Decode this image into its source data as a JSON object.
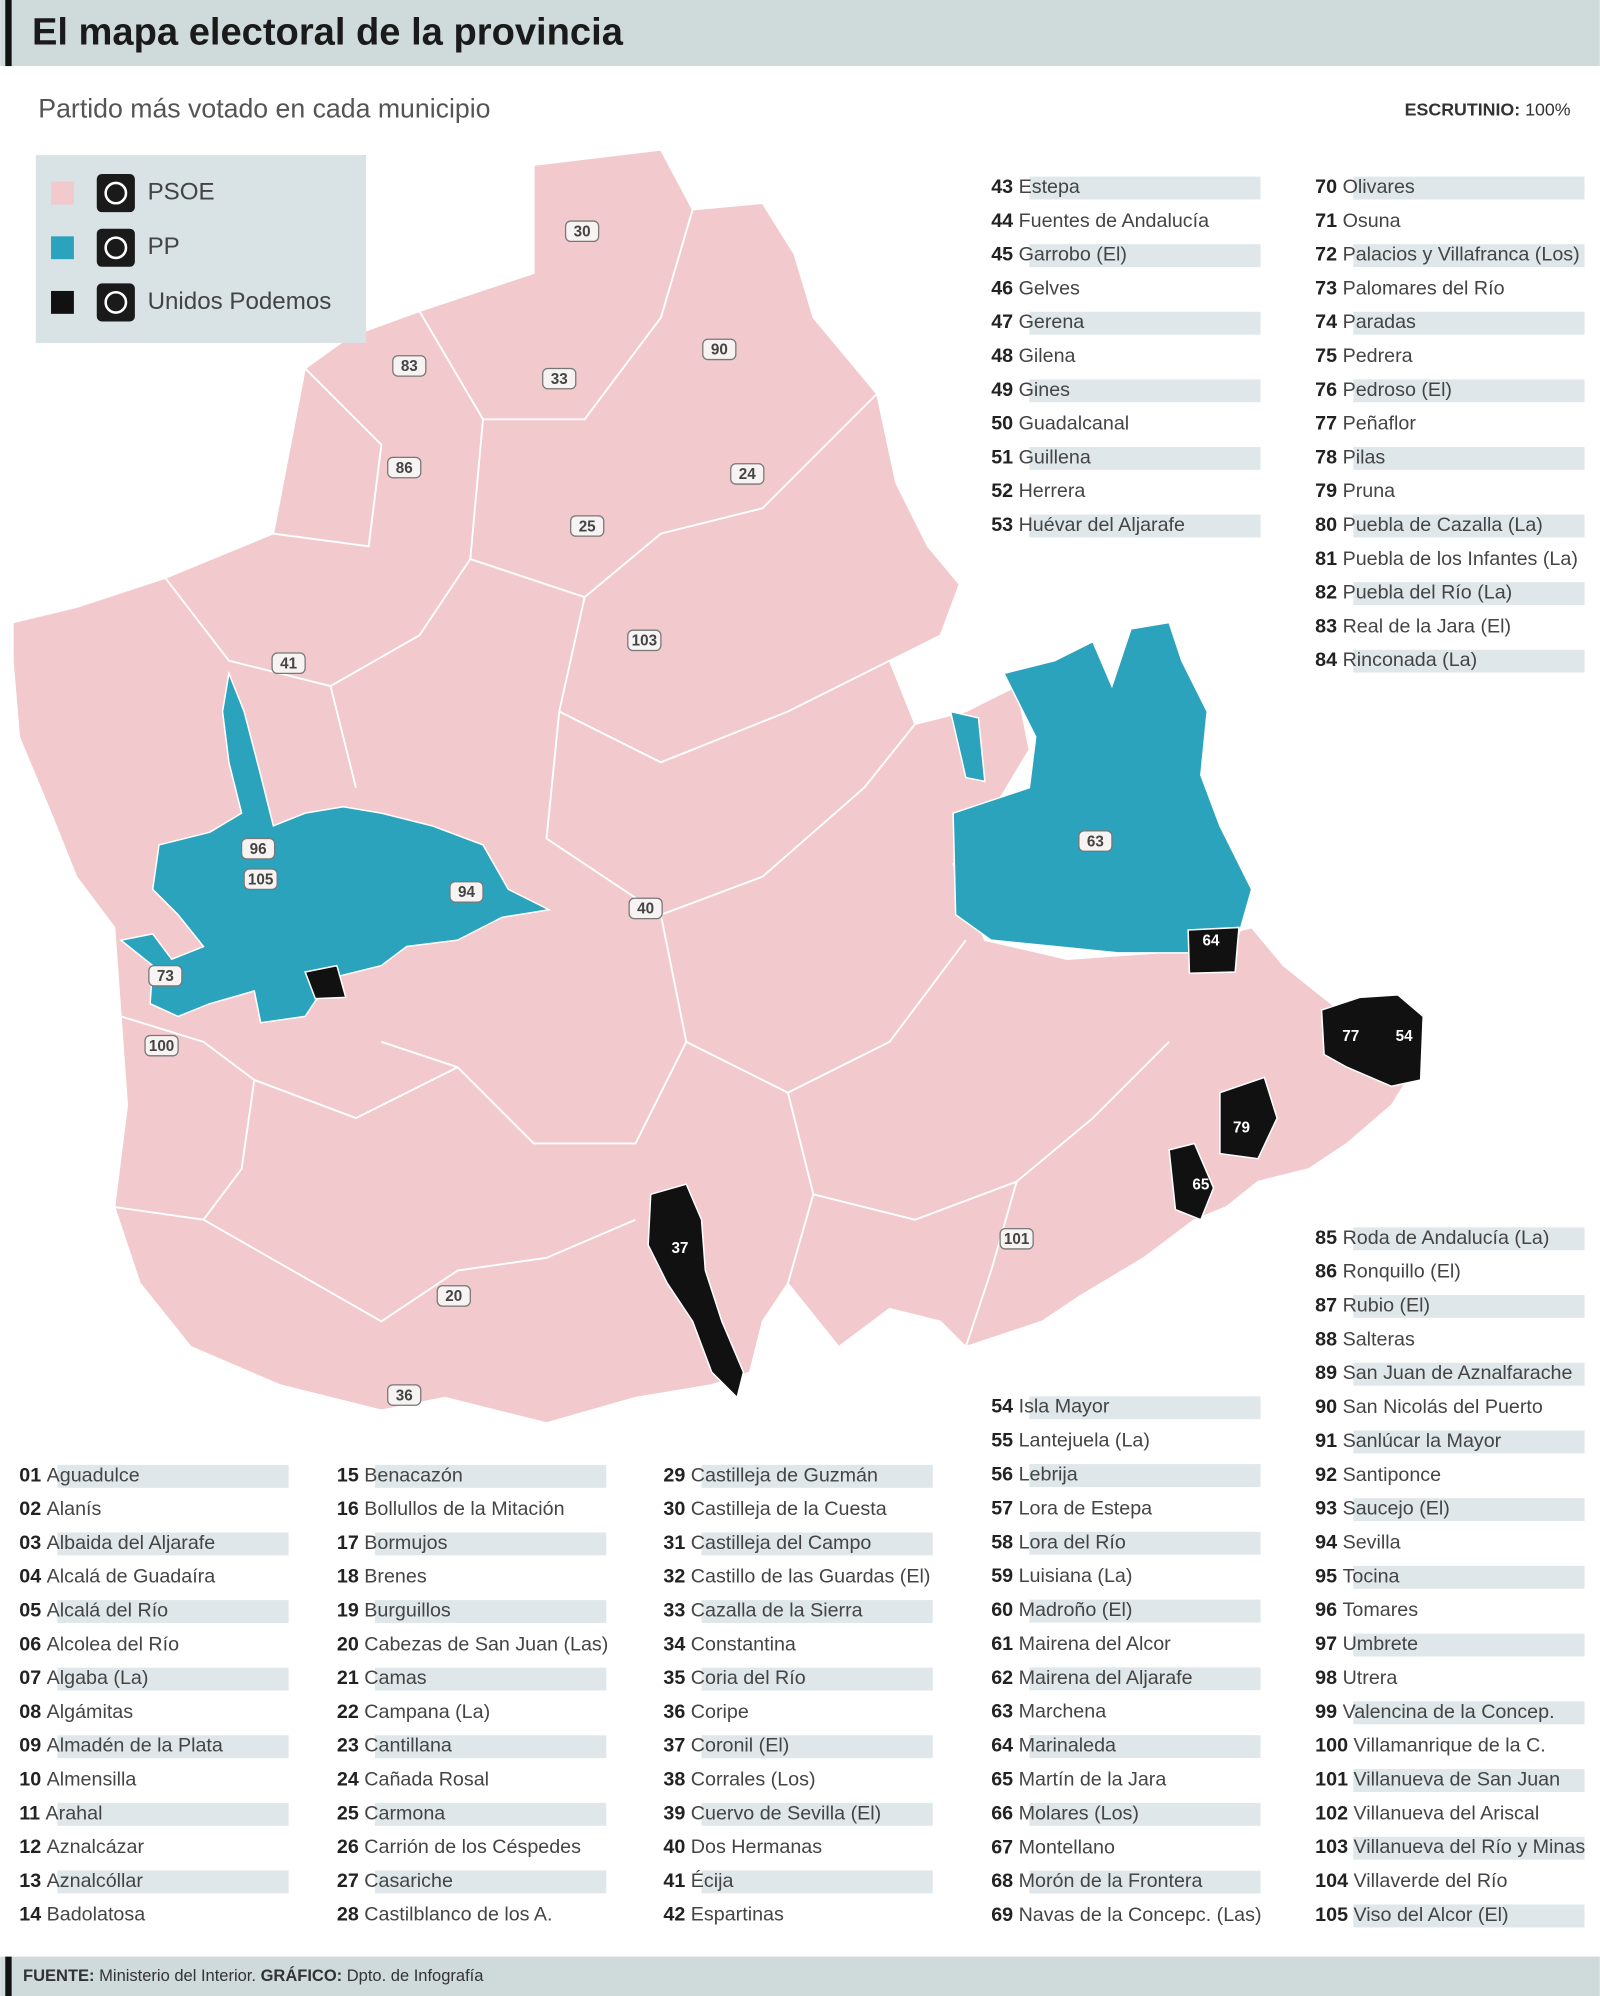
{
  "header": {
    "title": "El mapa electoral de la provincia",
    "subtitle": "Partido más votado en cada municipio",
    "count_label": "ESCRUTINIO:",
    "count_value": "100%"
  },
  "legend": [
    {
      "name": "PSOE",
      "color": "#f2c9cc"
    },
    {
      "name": "PP",
      "color": "#2ba3bd"
    },
    {
      "name": "Unidos Podemos",
      "color": "#111111"
    }
  ],
  "map_labels": [
    "30",
    "83",
    "33",
    "90",
    "86",
    "24",
    "25",
    "103",
    "41",
    "105",
    "96",
    "94",
    "73",
    "100",
    "40",
    "63",
    "64",
    "54",
    "77",
    "79",
    "65",
    "37",
    "101",
    "20",
    "36"
  ],
  "municipalities": [
    {
      "num": "01",
      "name": "Aguadulce"
    },
    {
      "num": "02",
      "name": "Alanís"
    },
    {
      "num": "03",
      "name": "Albaida del Aljarafe"
    },
    {
      "num": "04",
      "name": "Alcalá de Guadaíra"
    },
    {
      "num": "05",
      "name": "Alcalá del Río"
    },
    {
      "num": "06",
      "name": "Alcolea del Río"
    },
    {
      "num": "07",
      "name": "Algaba (La)"
    },
    {
      "num": "08",
      "name": "Algámitas"
    },
    {
      "num": "09",
      "name": "Almadén de la Plata"
    },
    {
      "num": "10",
      "name": "Almensilla"
    },
    {
      "num": "11",
      "name": "Arahal"
    },
    {
      "num": "12",
      "name": "Aznalcázar"
    },
    {
      "num": "13",
      "name": "Aznalcóllar"
    },
    {
      "num": "14",
      "name": "Badolatosa"
    },
    {
      "num": "15",
      "name": "Benacazón"
    },
    {
      "num": "16",
      "name": "Bollullos de la Mitación"
    },
    {
      "num": "17",
      "name": "Bormujos"
    },
    {
      "num": "18",
      "name": "Brenes"
    },
    {
      "num": "19",
      "name": "Burguillos"
    },
    {
      "num": "20",
      "name": "Cabezas de San Juan (Las)"
    },
    {
      "num": "21",
      "name": "Camas"
    },
    {
      "num": "22",
      "name": "Campana (La)"
    },
    {
      "num": "23",
      "name": "Cantillana"
    },
    {
      "num": "24",
      "name": "Cañada Rosal"
    },
    {
      "num": "25",
      "name": "Carmona"
    },
    {
      "num": "26",
      "name": "Carrión de los Céspedes"
    },
    {
      "num": "27",
      "name": "Casariche"
    },
    {
      "num": "28",
      "name": "Castilblanco de los A."
    },
    {
      "num": "29",
      "name": "Castilleja de Guzmán"
    },
    {
      "num": "30",
      "name": "Castilleja de la Cuesta"
    },
    {
      "num": "31",
      "name": "Castilleja del Campo"
    },
    {
      "num": "32",
      "name": "Castillo de las Guardas (El)"
    },
    {
      "num": "33",
      "name": "Cazalla de la Sierra"
    },
    {
      "num": "34",
      "name": "Constantina"
    },
    {
      "num": "35",
      "name": "Coria del Río"
    },
    {
      "num": "36",
      "name": "Coripe"
    },
    {
      "num": "37",
      "name": "Coronil (El)"
    },
    {
      "num": "38",
      "name": "Corrales (Los)"
    },
    {
      "num": "39",
      "name": "Cuervo de Sevilla (El)"
    },
    {
      "num": "40",
      "name": "Dos Hermanas"
    },
    {
      "num": "41",
      "name": "Écija"
    },
    {
      "num": "42",
      "name": "Espartinas"
    },
    {
      "num": "43",
      "name": "Estepa"
    },
    {
      "num": "44",
      "name": "Fuentes de Andalucía"
    },
    {
      "num": "45",
      "name": "Garrobo (El)"
    },
    {
      "num": "46",
      "name": "Gelves"
    },
    {
      "num": "47",
      "name": "Gerena"
    },
    {
      "num": "48",
      "name": "Gilena"
    },
    {
      "num": "49",
      "name": "Gines"
    },
    {
      "num": "50",
      "name": "Guadalcanal"
    },
    {
      "num": "51",
      "name": "Guillena"
    },
    {
      "num": "52",
      "name": "Herrera"
    },
    {
      "num": "53",
      "name": "Huévar del Aljarafe"
    },
    {
      "num": "54",
      "name": "Isla Mayor"
    },
    {
      "num": "55",
      "name": "Lantejuela (La)"
    },
    {
      "num": "56",
      "name": "Lebrija"
    },
    {
      "num": "57",
      "name": "Lora de Estepa"
    },
    {
      "num": "58",
      "name": "Lora del Río"
    },
    {
      "num": "59",
      "name": "Luisiana (La)"
    },
    {
      "num": "60",
      "name": "Madroño (El)"
    },
    {
      "num": "61",
      "name": "Mairena del Alcor"
    },
    {
      "num": "62",
      "name": "Mairena del Aljarafe"
    },
    {
      "num": "63",
      "name": "Marchena"
    },
    {
      "num": "64",
      "name": "Marinaleda"
    },
    {
      "num": "65",
      "name": "Martín de la Jara"
    },
    {
      "num": "66",
      "name": "Molares (Los)"
    },
    {
      "num": "67",
      "name": "Montellano"
    },
    {
      "num": "68",
      "name": "Morón de la Frontera"
    },
    {
      "num": "69",
      "name": "Navas de la Concepc. (Las)"
    },
    {
      "num": "70",
      "name": "Olivares"
    },
    {
      "num": "71",
      "name": "Osuna"
    },
    {
      "num": "72",
      "name": "Palacios y Villafranca (Los)"
    },
    {
      "num": "73",
      "name": "Palomares del Río"
    },
    {
      "num": "74",
      "name": "Paradas"
    },
    {
      "num": "75",
      "name": "Pedrera"
    },
    {
      "num": "76",
      "name": "Pedroso (El)"
    },
    {
      "num": "77",
      "name": "Peñaflor"
    },
    {
      "num": "78",
      "name": "Pilas"
    },
    {
      "num": "79",
      "name": "Pruna"
    },
    {
      "num": "80",
      "name": "Puebla de Cazalla (La)"
    },
    {
      "num": "81",
      "name": "Puebla de los Infantes (La)"
    },
    {
      "num": "82",
      "name": "Puebla del Río (La)"
    },
    {
      "num": "83",
      "name": "Real de la Jara (El)"
    },
    {
      "num": "84",
      "name": "Rinconada (La)"
    },
    {
      "num": "85",
      "name": "Roda de Andalucía (La)"
    },
    {
      "num": "86",
      "name": "Ronquillo (El)"
    },
    {
      "num": "87",
      "name": "Rubio (El)"
    },
    {
      "num": "88",
      "name": "Salteras"
    },
    {
      "num": "89",
      "name": "San Juan de Aznalfarache"
    },
    {
      "num": "90",
      "name": "San Nicolás del Puerto"
    },
    {
      "num": "91",
      "name": "Sanlúcar la Mayor"
    },
    {
      "num": "92",
      "name": "Santiponce"
    },
    {
      "num": "93",
      "name": "Saucejo (El)"
    },
    {
      "num": "94",
      "name": "Sevilla"
    },
    {
      "num": "95",
      "name": "Tocina"
    },
    {
      "num": "96",
      "name": "Tomares"
    },
    {
      "num": "97",
      "name": "Umbrete"
    },
    {
      "num": "98",
      "name": "Utrera"
    },
    {
      "num": "99",
      "name": "Valencina de la Concep."
    },
    {
      "num": "100",
      "name": "Villamanrique de la C."
    },
    {
      "num": "101",
      "name": "Villanueva de San Juan"
    },
    {
      "num": "102",
      "name": "Villanueva del Ariscal"
    },
    {
      "num": "103",
      "name": "Villanueva del Río y Minas"
    },
    {
      "num": "104",
      "name": "Villaverde del Río"
    },
    {
      "num": "105",
      "name": "Viso del Alcor (El)"
    }
  ],
  "footer": {
    "source_label": "FUENTE:",
    "source": "Ministerio del Interior.",
    "graphic_label": "GRÁFICO:",
    "graphic": "Dpto. de Infografía"
  }
}
